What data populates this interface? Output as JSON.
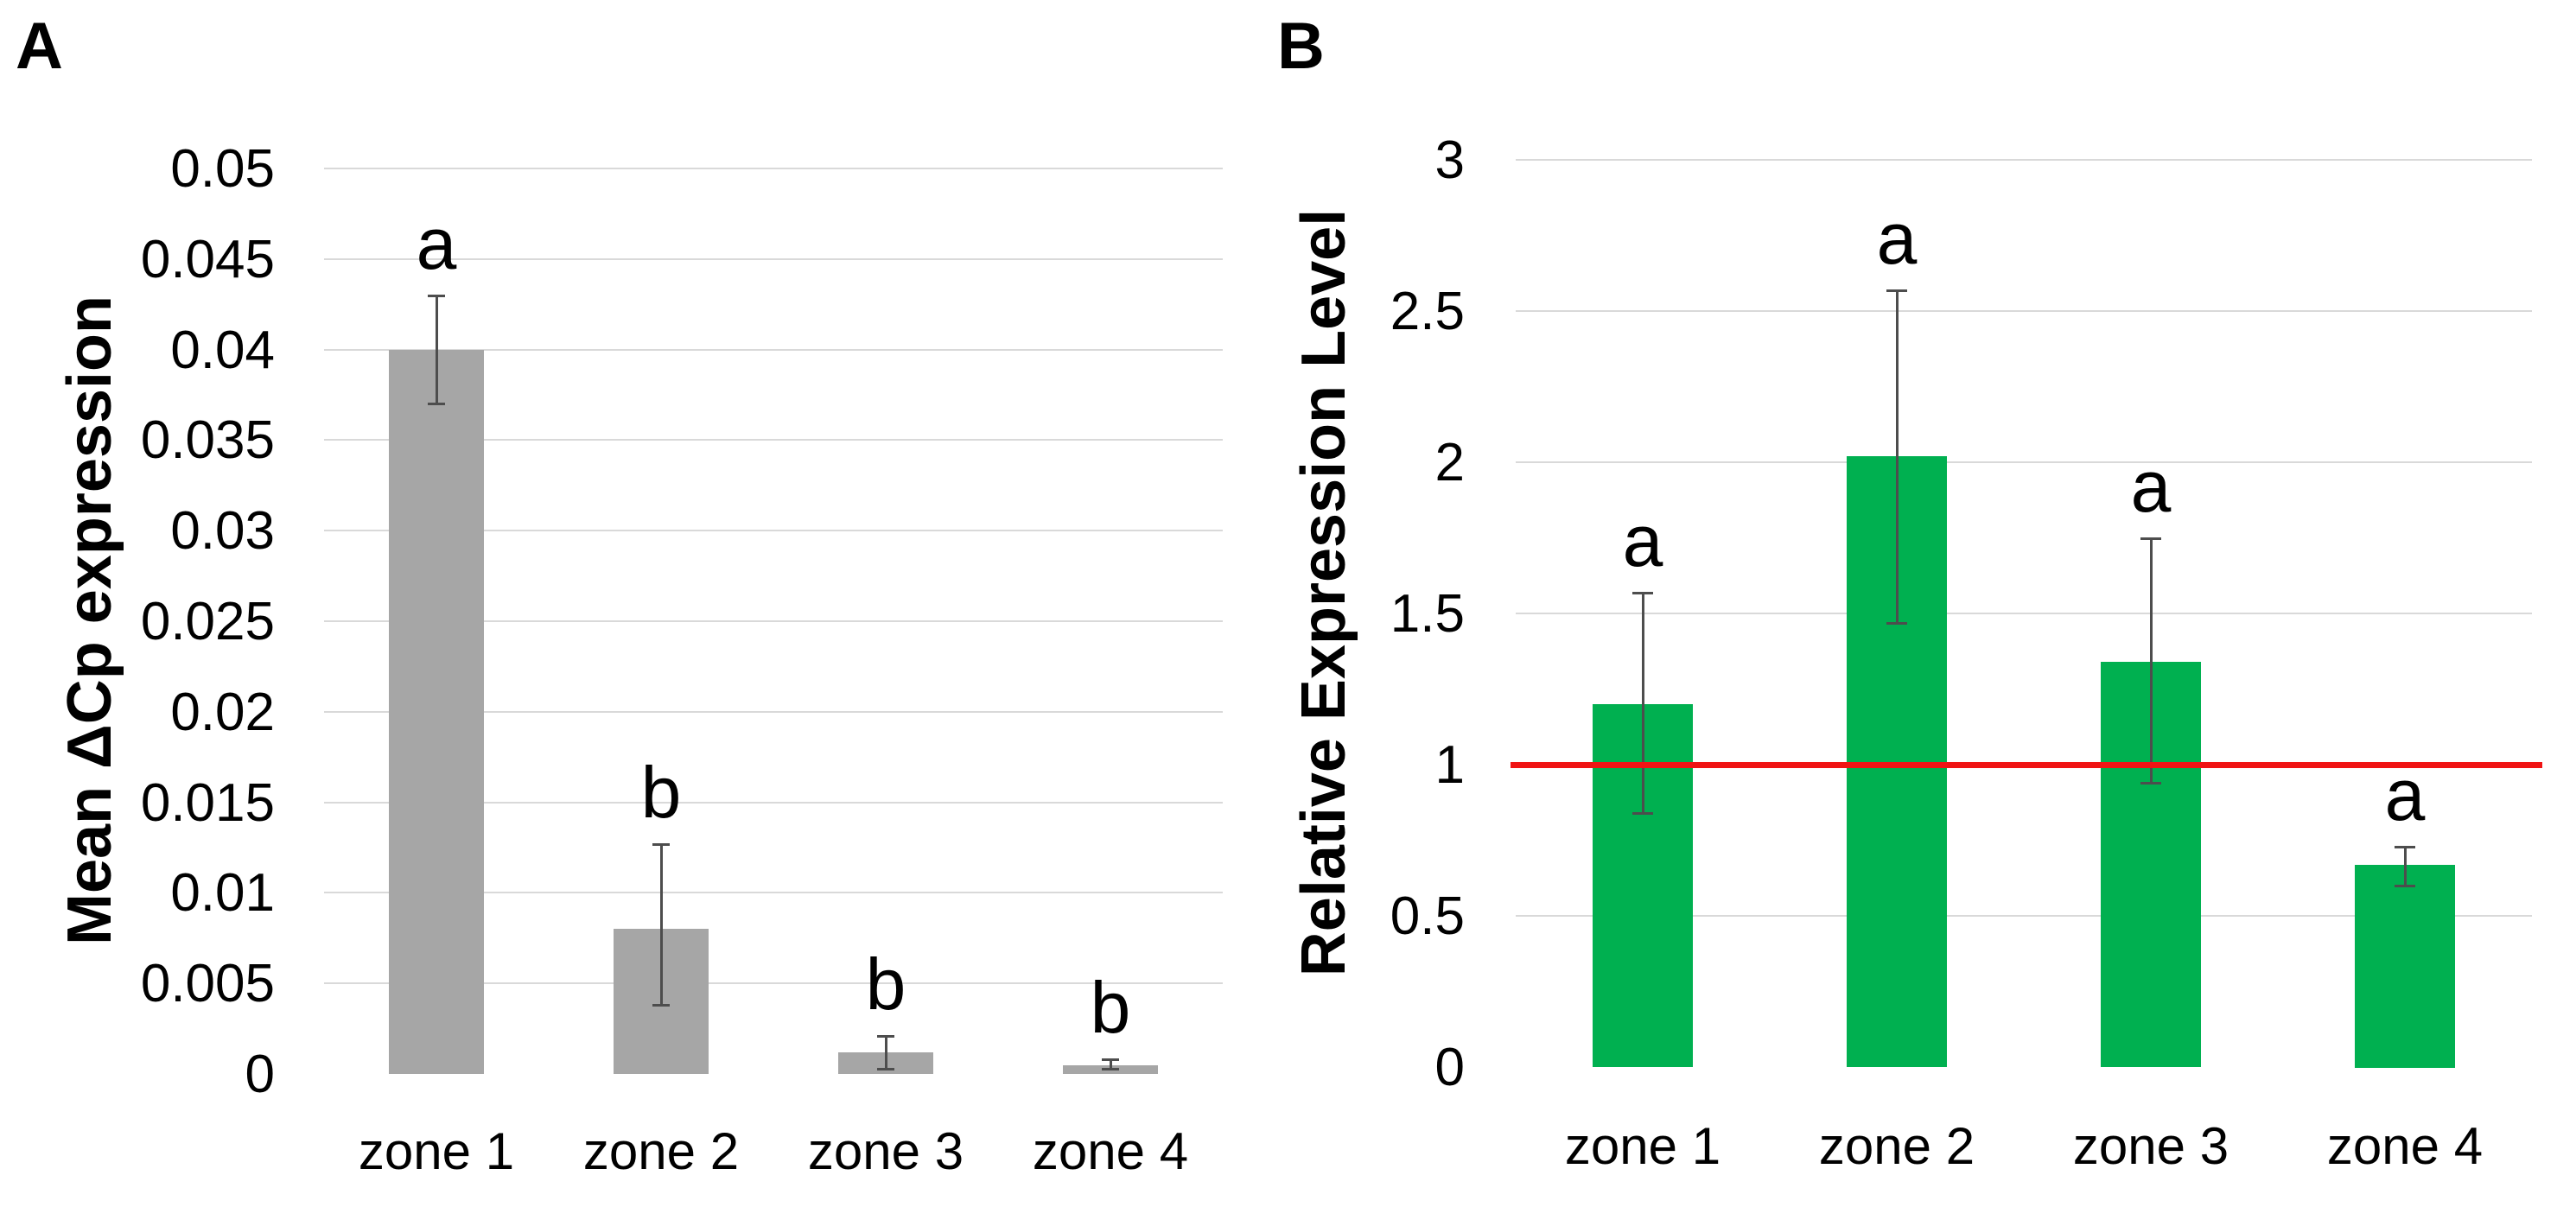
{
  "figure": {
    "background_color": "#ffffff",
    "gridline_color": "#d9d9d9",
    "error_bar_color": "#4d4d4d",
    "text_color": "#000000"
  },
  "chart_data": [
    {
      "id": "A",
      "panel_label": "A",
      "type": "bar",
      "categories": [
        "zone 1",
        "zone 2",
        "zone 3",
        "zone 4"
      ],
      "values": [
        0.04,
        0.008,
        0.0012,
        0.0005
      ],
      "error_low": [
        0.037,
        0.0038,
        0.0003,
        0.0003
      ],
      "error_high": [
        0.043,
        0.0127,
        0.0021,
        0.0008
      ],
      "sig_letters": [
        "a",
        "b",
        "b",
        "b"
      ],
      "title": "",
      "xlabel": "",
      "ylabel": "Mean ΔCp expression",
      "ylim": [
        0,
        0.05
      ],
      "ytick_step": 0.005,
      "ytick_labels": [
        "0",
        "0.005",
        "0.01",
        "0.015",
        "0.02",
        "0.025",
        "0.03",
        "0.035",
        "0.04",
        "0.045",
        "0.05"
      ],
      "bar_color": "#a6a6a6",
      "grid": true,
      "legend": false
    },
    {
      "id": "B",
      "panel_label": "B",
      "type": "bar",
      "categories": [
        "zone 1",
        "zone 2",
        "zone 3",
        "zone 4"
      ],
      "values": [
        1.2,
        2.02,
        1.34,
        0.67
      ],
      "error_low": [
        0.84,
        1.47,
        0.94,
        0.6
      ],
      "error_high": [
        1.57,
        2.57,
        1.75,
        0.73
      ],
      "sig_letters": [
        "a",
        "a",
        "a",
        "a"
      ],
      "title": "",
      "xlabel": "",
      "ylabel": "Relative Expression Level",
      "ylim": [
        0,
        3
      ],
      "ytick_step": 0.5,
      "ytick_labels": [
        "0",
        "0.5",
        "1",
        "1.5",
        "2",
        "2.5",
        "3"
      ],
      "bar_color": "#00b050",
      "grid": true,
      "legend": false,
      "ref_line": {
        "value": 1,
        "color": "#f01414"
      }
    }
  ]
}
